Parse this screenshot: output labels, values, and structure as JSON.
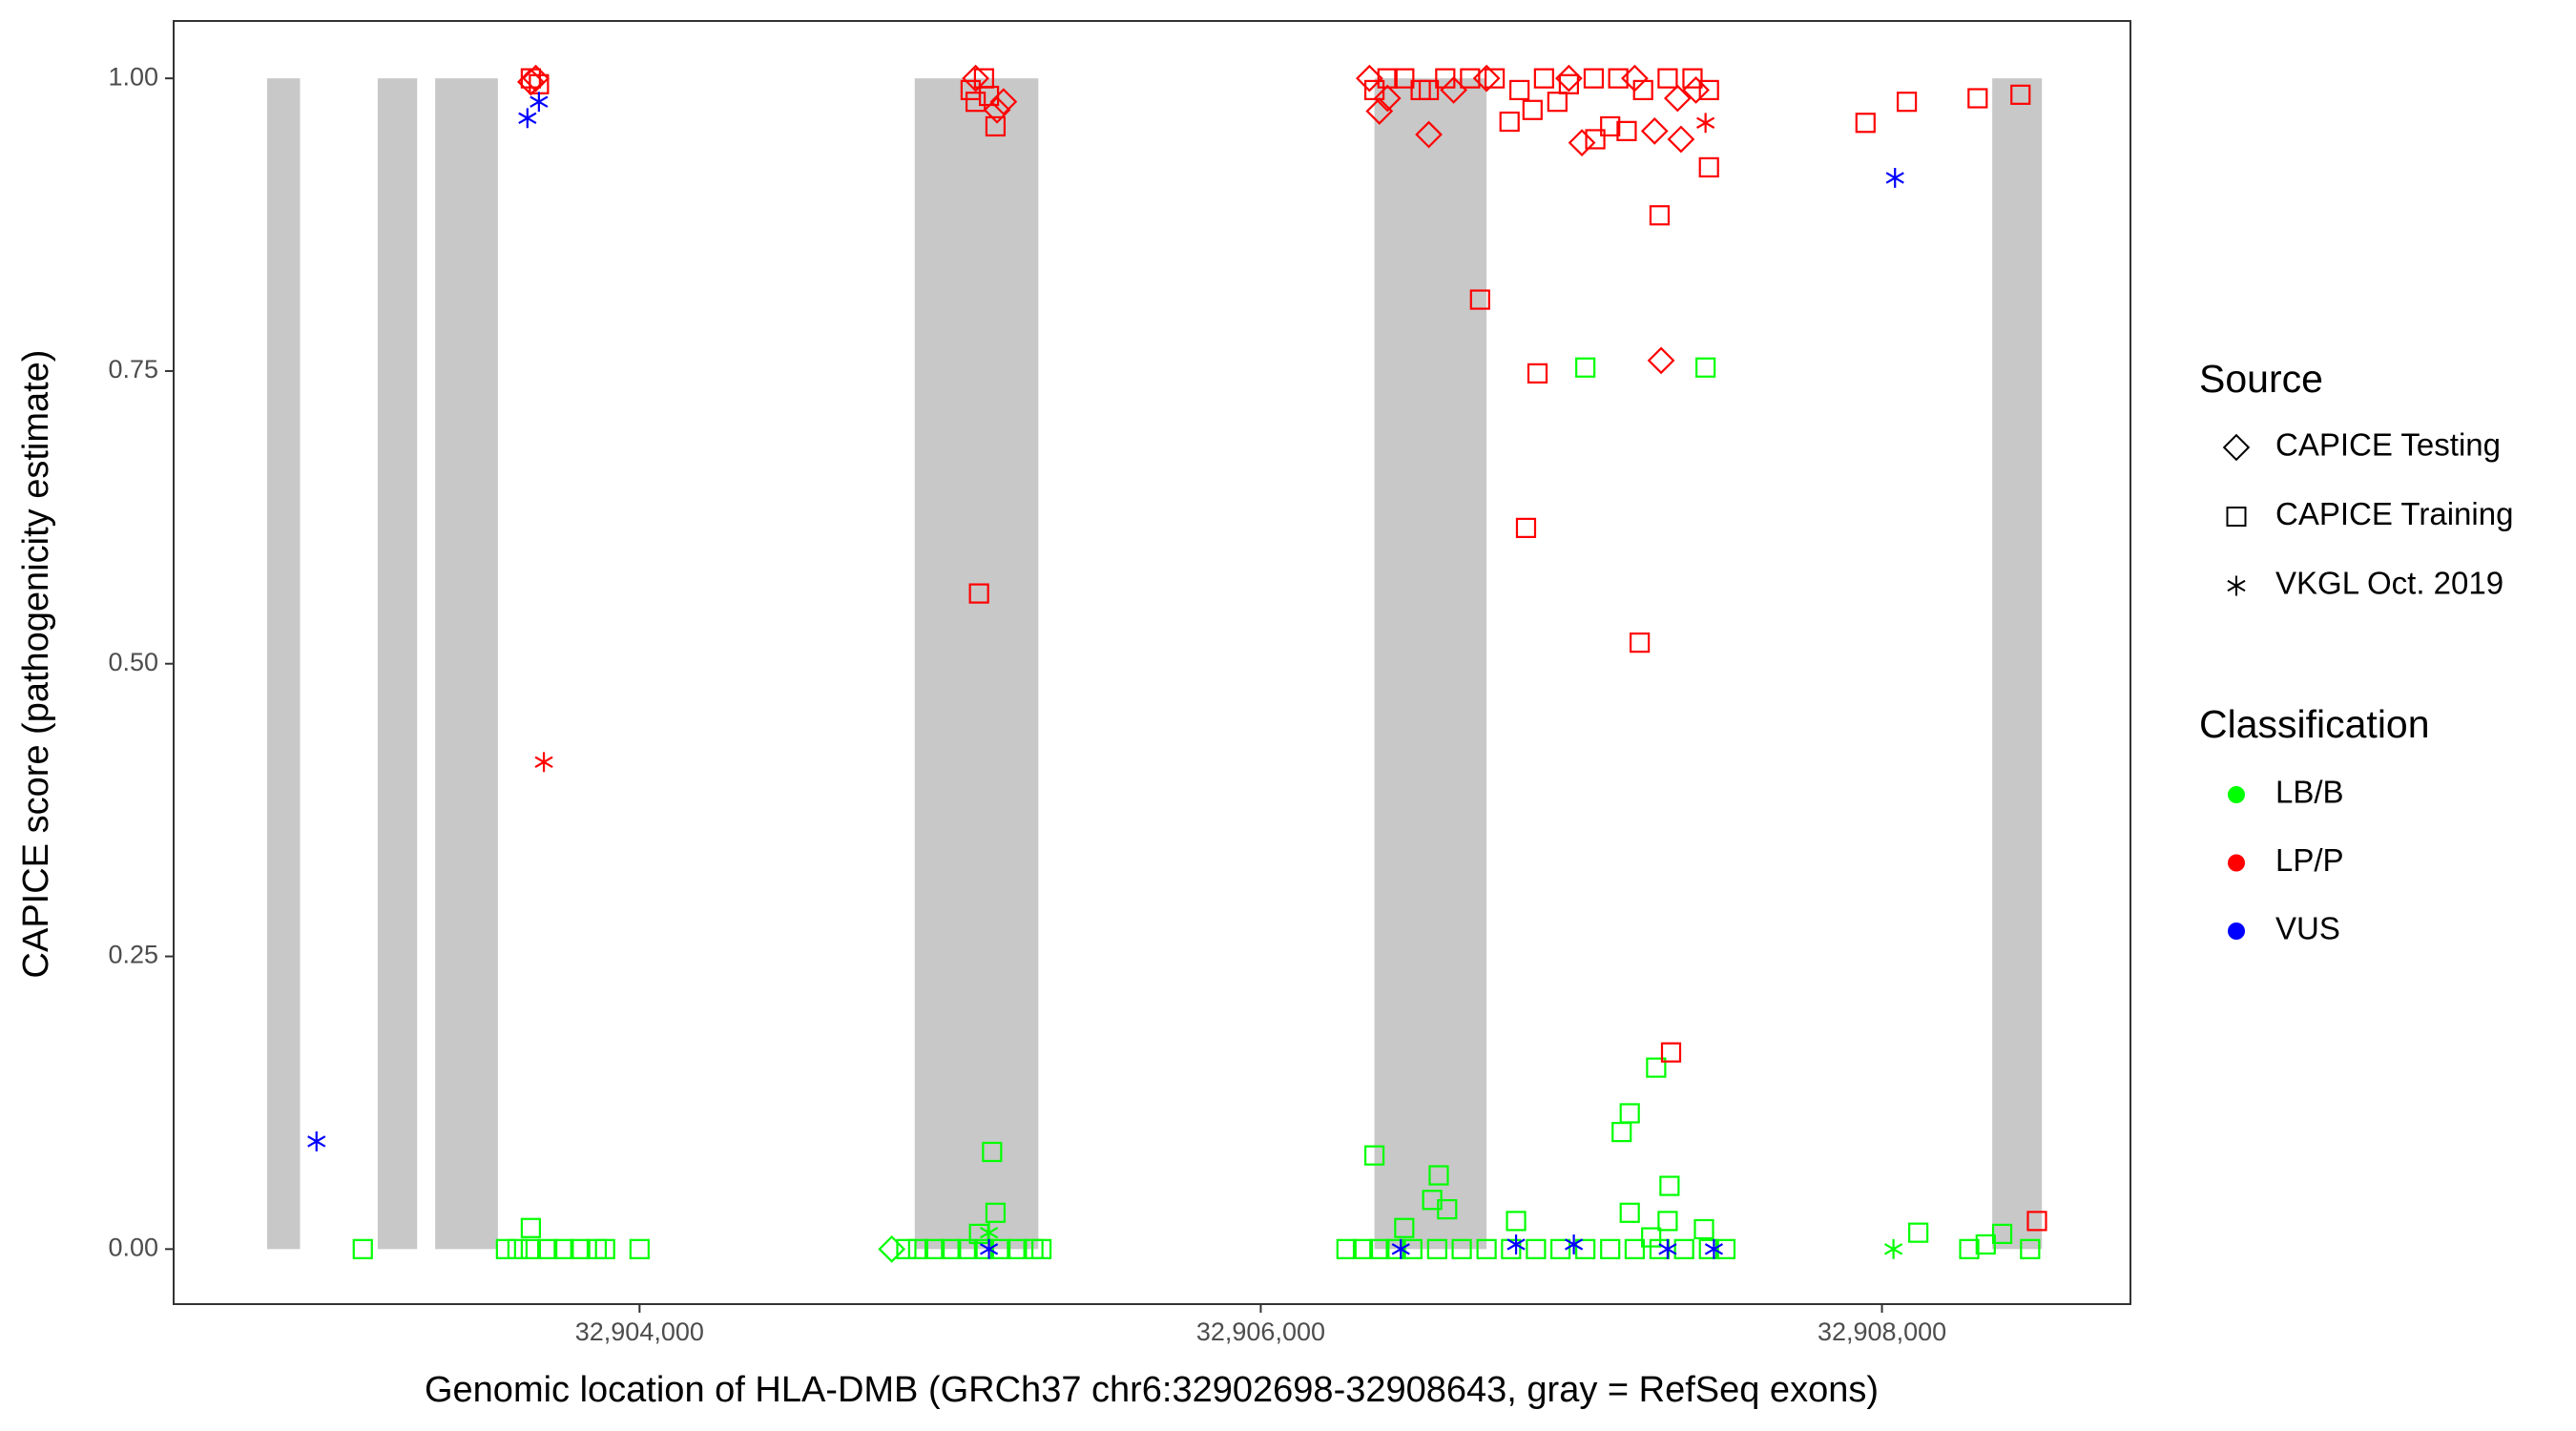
{
  "chart_data": {
    "type": "scatter",
    "xlabel": "Genomic location of HLA-DMB (GRCh37 chr6:32902698-32908643, gray = RefSeq exons)",
    "ylabel": "CAPICE score (pathogenicity estimate)",
    "xlim": [
      32902500,
      32908800
    ],
    "ylim": [
      -0.047,
      1.049
    ],
    "xticks": [
      {
        "value": 32904000,
        "label": "32,904,000"
      },
      {
        "value": 32906000,
        "label": "32,906,000"
      },
      {
        "value": 32908000,
        "label": "32,908,000"
      }
    ],
    "yticks": [
      {
        "value": 0,
        "label": "0.00"
      },
      {
        "value": 0.25,
        "label": "0.25"
      },
      {
        "value": 0.5,
        "label": "0.50"
      },
      {
        "value": 0.75,
        "label": "0.75"
      },
      {
        "value": 1,
        "label": "1.00"
      }
    ],
    "grid": false,
    "exon_color": "#c8c8c8",
    "exon_y": [
      0,
      1
    ],
    "exons": [
      [
        32902801,
        32902907
      ],
      [
        32903157,
        32903284
      ],
      [
        32903342,
        32903544
      ],
      [
        32904886,
        32905284
      ],
      [
        32906366,
        32906727
      ],
      [
        32908355,
        32908515
      ]
    ],
    "legend_source": {
      "title": "Source",
      "entries": [
        {
          "name": "CAPICE Testing",
          "shape": "diamond"
        },
        {
          "name": "CAPICE Training",
          "shape": "square"
        },
        {
          "name": "VKGL Oct. 2019",
          "shape": "asterisk"
        }
      ]
    },
    "legend_class": {
      "title": "Classification",
      "entries": [
        {
          "name": "LB/B",
          "color": "#00ff00"
        },
        {
          "name": "LP/P",
          "color": "#ff0000"
        },
        {
          "name": "VUS",
          "color": "#0000ff"
        }
      ]
    },
    "series": [
      {
        "source": "CAPICE Testing",
        "classification": "LB/B",
        "x": [
          32904812
        ],
        "y": [
          0
        ]
      },
      {
        "source": "CAPICE Testing",
        "classification": "LP/P",
        "x": [
          32903666,
          32903650,
          32905082,
          32905151,
          32905172,
          32906350,
          32906382,
          32906541,
          32906727,
          32906992,
          32907034,
          32907204,
          32907268,
          32907289,
          32907342,
          32907353,
          32907401,
          32906408,
          32906621
        ],
        "y": [
          1,
          0.997,
          1,
          0.973,
          0.98,
          1,
          0.972,
          0.952,
          1,
          1,
          0.945,
          1,
          0.955,
          0.759,
          0.983,
          0.948,
          0.99,
          0.983,
          0.99
        ]
      },
      {
        "source": "CAPICE Training",
        "classification": "LB/B",
        "x": [
          32903109,
          32903570,
          32903607,
          32903650,
          32903703,
          32903756,
          32903809,
          32903862,
          32903889,
          32903650,
          32904000,
          32904859,
          32904897,
          32904950,
          32905003,
          32905056,
          32905109,
          32905162,
          32905215,
          32905268,
          32905294,
          32905135,
          32905146,
          32905093,
          32906276,
          32906329,
          32906382,
          32906435,
          32906488,
          32906568,
          32906647,
          32906727,
          32906806,
          32906886,
          32906965,
          32907045,
          32907125,
          32907204,
          32907284,
          32907363,
          32907443,
          32907496,
          32906366,
          32906573,
          32906552,
          32906600,
          32906462,
          32906822,
          32907045,
          32907432,
          32907188,
          32907162,
          32907273,
          32907316,
          32907188,
          32907310,
          32907427,
          32907257,
          32908117,
          32908281,
          32908334,
          32908387,
          32908477
        ],
        "y": [
          0,
          0,
          0,
          0,
          0,
          0,
          0,
          0,
          0,
          0.018,
          0,
          0,
          0,
          0,
          0,
          0,
          0,
          0,
          0,
          0,
          0,
          0.083,
          0.031,
          0.013,
          0,
          0,
          0,
          0,
          0,
          0,
          0,
          0,
          0,
          0,
          0,
          0,
          0,
          0,
          0,
          0,
          0,
          0,
          0.08,
          0.063,
          0.042,
          0.034,
          0.018,
          0.024,
          0.753,
          0.753,
          0.116,
          0.1,
          0.155,
          0.054,
          0.031,
          0.024,
          0.017,
          0.01,
          0.014,
          0,
          0.004,
          0.013,
          0
        ]
      },
      {
        "source": "CAPICE Training",
        "classification": "LP/P",
        "x": [
          32903650,
          32903676,
          32905066,
          32905082,
          32905109,
          32905146,
          32905093,
          32905125,
          32906366,
          32906408,
          32906462,
          32906515,
          32906594,
          32906674,
          32906753,
          32906833,
          32906912,
          32906992,
          32907072,
          32907151,
          32907231,
          32907310,
          32907390,
          32907443,
          32906541,
          32906801,
          32906875,
          32906955,
          32907077,
          32907125,
          32907178,
          32907284,
          32907443,
          32906706,
          32906891,
          32906854,
          32907220,
          32907321,
          32907947,
          32908080,
          32908308,
          32908446,
          32908499
        ],
        "y": [
          1,
          0.995,
          0.99,
          0.98,
          1,
          0.959,
          0.56,
          0.985,
          0.99,
          1,
          1,
          0.99,
          1,
          1,
          1,
          0.99,
          1,
          0.995,
          1,
          1,
          0.99,
          1,
          1,
          0.99,
          0.99,
          0.963,
          0.973,
          0.98,
          0.948,
          0.959,
          0.955,
          0.883,
          0.924,
          0.811,
          0.748,
          0.616,
          0.518,
          0.168,
          0.962,
          0.98,
          0.983,
          0.986,
          0.024
        ]
      },
      {
        "source": "VKGL Oct. 2019",
        "classification": "LB/B",
        "x": [
          32905125,
          32908037
        ],
        "y": [
          0.014,
          0
        ]
      },
      {
        "source": "VKGL Oct. 2019",
        "classification": "LP/P",
        "x": [
          32903692,
          32907432
        ],
        "y": [
          0.416,
          0.962
        ]
      },
      {
        "source": "VKGL Oct. 2019",
        "classification": "VUS",
        "x": [
          32902960,
          32903639,
          32903676,
          32905125,
          32906451,
          32906822,
          32907008,
          32907310,
          32907459,
          32908042
        ],
        "y": [
          0.092,
          0.966,
          0.98,
          0,
          0,
          0.004,
          0.004,
          0,
          0,
          0.915
        ]
      }
    ]
  }
}
